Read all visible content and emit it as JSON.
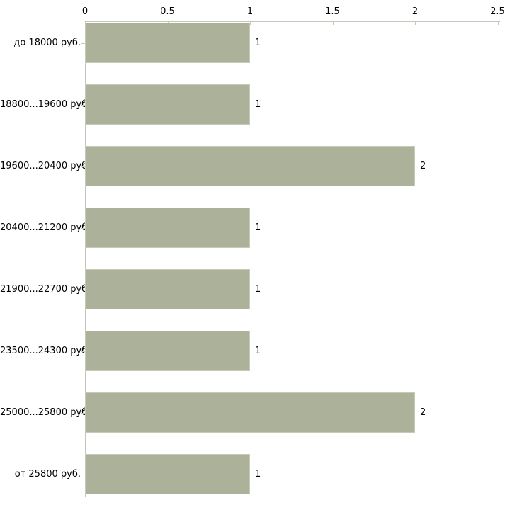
{
  "chart_data": {
    "type": "bar",
    "orientation": "horizontal",
    "title": "",
    "xlabel": "",
    "ylabel": "",
    "categories": [
      "до 18000 руб.",
      "18800...19600 руб.",
      "19600...20400 руб.",
      "20400...21200 руб.",
      "21900...22700 руб.",
      "23500...24300 руб.",
      "25000...25800 руб.",
      "от 25800 руб."
    ],
    "values": [
      1,
      1,
      2,
      1,
      1,
      1,
      2,
      1
    ],
    "value_labels": [
      "1",
      "1",
      "2",
      "1",
      "1",
      "1",
      "2",
      "1"
    ],
    "x_ticks": [
      "0",
      "0.5",
      "1",
      "1.5",
      "2",
      "2.5"
    ],
    "xlim": [
      0,
      2.5
    ],
    "axis_position": "top",
    "grid": false,
    "legend": false,
    "colors": {
      "bar_fill": "#acb29a",
      "bar_border": "#c5cab9",
      "axis_line": "#c5c7ba",
      "tick_mark": "#c8cab2",
      "text": "#000000",
      "background": "#ffffff"
    }
  }
}
